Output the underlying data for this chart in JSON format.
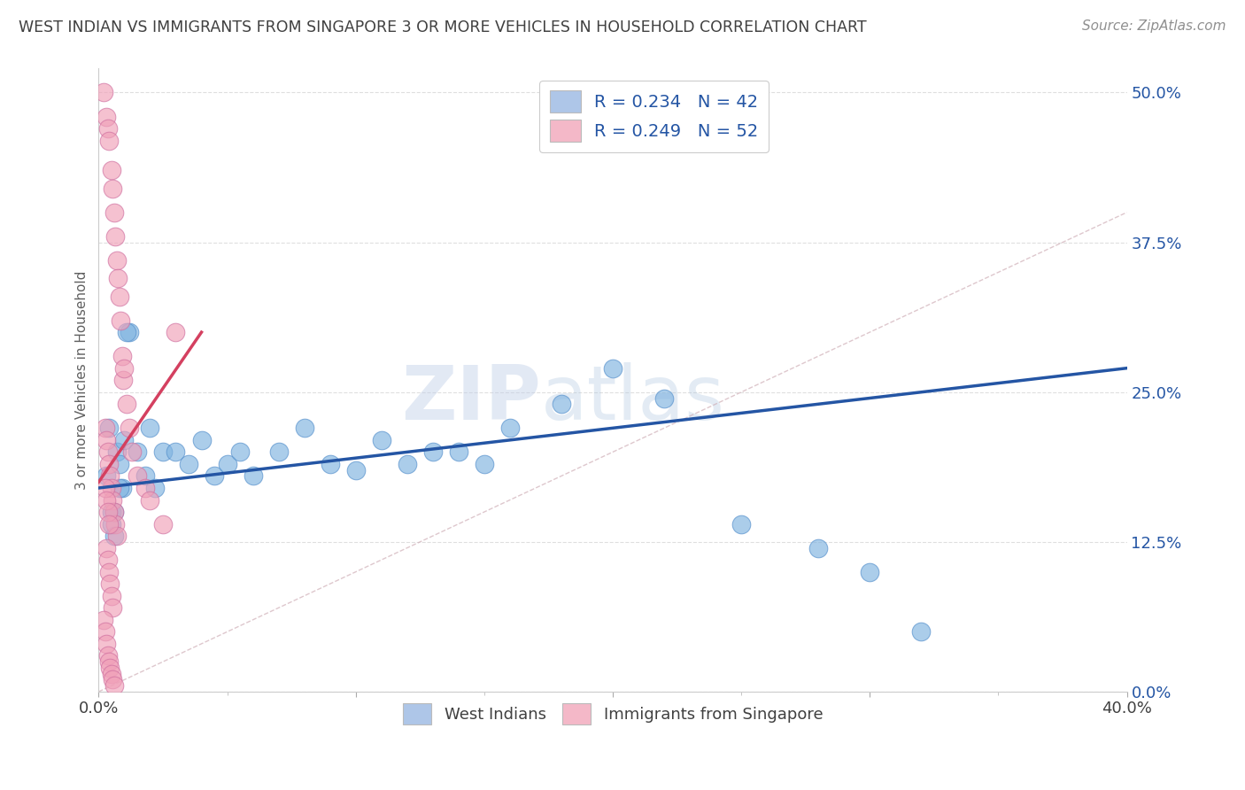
{
  "title": "WEST INDIAN VS IMMIGRANTS FROM SINGAPORE 3 OR MORE VEHICLES IN HOUSEHOLD CORRELATION CHART",
  "source": "Source: ZipAtlas.com",
  "ylabel": "3 or more Vehicles in Household",
  "xlim": [
    0.0,
    40.0
  ],
  "ylim": [
    0.0,
    52.0
  ],
  "watermark_zip": "ZIP",
  "watermark_atlas": "atlas",
  "legend_entries": [
    {
      "label": "R = 0.234   N = 42",
      "color": "#aec6e8"
    },
    {
      "label": "R = 0.249   N = 52",
      "color": "#f4b8c8"
    }
  ],
  "legend_bottom": [
    "West Indians",
    "Immigrants from Singapore"
  ],
  "blue_scatter_color": "#7fb3e0",
  "pink_scatter_color": "#f0a0b8",
  "blue_line_color": "#2455a4",
  "pink_line_color": "#d44060",
  "pink_dash_color": "#e8b0c0",
  "ref_line_color": "#d0b0b8",
  "background_color": "#ffffff",
  "title_color": "#404040",
  "source_color": "#909090",
  "grid_color": "#d8d8d8",
  "ytick_color": "#2455a4",
  "xtick_color": "#404040",
  "wi_x": [
    0.3,
    0.4,
    0.5,
    0.6,
    0.7,
    0.8,
    0.9,
    1.0,
    1.2,
    1.5,
    1.8,
    2.0,
    2.2,
    2.5,
    3.0,
    3.5,
    4.0,
    4.5,
    5.0,
    5.5,
    6.0,
    7.0,
    8.0,
    9.0,
    10.0,
    11.0,
    12.0,
    13.0,
    14.0,
    15.0,
    16.0,
    18.0,
    20.0,
    22.0,
    25.0,
    28.0,
    30.0,
    32.0,
    0.5,
    0.6,
    0.8,
    1.1
  ],
  "wi_y": [
    18.0,
    22.0,
    15.0,
    13.0,
    20.0,
    19.0,
    17.0,
    21.0,
    30.0,
    20.0,
    18.0,
    22.0,
    17.0,
    20.0,
    20.0,
    19.0,
    21.0,
    18.0,
    19.0,
    20.0,
    18.0,
    20.0,
    22.0,
    19.0,
    18.5,
    21.0,
    19.0,
    20.0,
    20.0,
    19.0,
    22.0,
    24.0,
    27.0,
    24.5,
    14.0,
    12.0,
    10.0,
    5.0,
    14.0,
    15.0,
    17.0,
    30.0
  ],
  "sg_x": [
    0.2,
    0.3,
    0.35,
    0.4,
    0.5,
    0.55,
    0.6,
    0.65,
    0.7,
    0.75,
    0.8,
    0.85,
    0.9,
    0.95,
    1.0,
    1.1,
    1.2,
    1.3,
    1.5,
    1.8,
    2.0,
    2.5,
    3.0,
    0.25,
    0.3,
    0.35,
    0.4,
    0.45,
    0.5,
    0.55,
    0.6,
    0.65,
    0.7,
    0.3,
    0.35,
    0.4,
    0.45,
    0.5,
    0.55,
    0.2,
    0.25,
    0.3,
    0.35,
    0.4,
    0.45,
    0.5,
    0.55,
    0.6,
    0.25,
    0.3,
    0.35,
    0.4
  ],
  "sg_y": [
    50.0,
    48.0,
    47.0,
    46.0,
    43.5,
    42.0,
    40.0,
    38.0,
    36.0,
    34.5,
    33.0,
    31.0,
    28.0,
    26.0,
    27.0,
    24.0,
    22.0,
    20.0,
    18.0,
    17.0,
    16.0,
    14.0,
    30.0,
    22.0,
    21.0,
    20.0,
    19.0,
    18.0,
    17.0,
    16.0,
    15.0,
    14.0,
    13.0,
    12.0,
    11.0,
    10.0,
    9.0,
    8.0,
    7.0,
    6.0,
    5.0,
    4.0,
    3.0,
    2.5,
    2.0,
    1.5,
    1.0,
    0.5,
    17.0,
    16.0,
    15.0,
    14.0
  ],
  "blue_line_x": [
    0.0,
    40.0
  ],
  "blue_line_y": [
    17.0,
    27.0
  ],
  "pink_line_x": [
    0.0,
    4.0
  ],
  "pink_line_y": [
    17.5,
    30.0
  ],
  "ref_line_x": [
    0.0,
    40.0
  ],
  "ref_line_y": [
    0.0,
    40.0
  ]
}
